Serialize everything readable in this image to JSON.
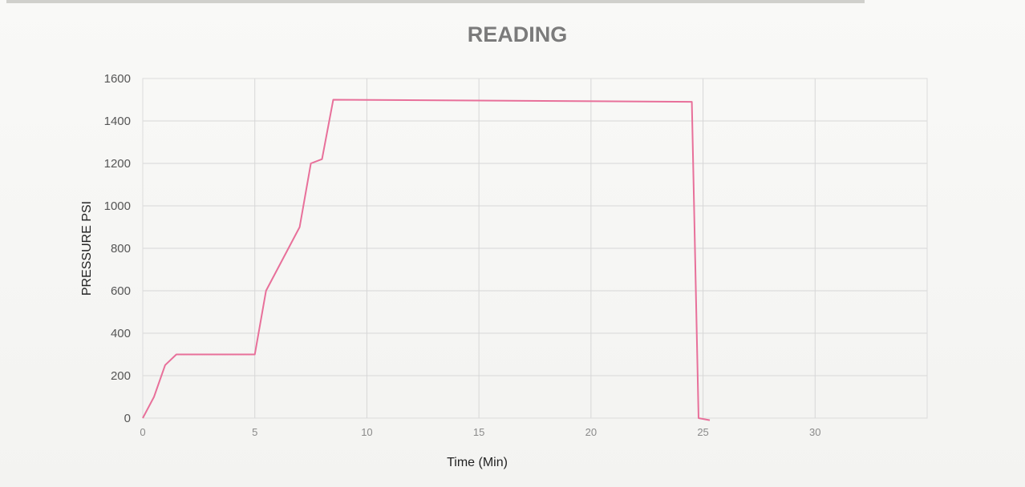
{
  "chart_data": {
    "type": "line",
    "title": "READING",
    "xlabel": "Time (Min)",
    "ylabel": "PRESSURE PSI",
    "xlim": [
      0,
      35
    ],
    "ylim": [
      0,
      1600
    ],
    "x_ticks": [
      "0",
      "5",
      "10",
      "15",
      "20",
      "25",
      "30"
    ],
    "y_ticks": [
      "0",
      "200",
      "400",
      "600",
      "800",
      "1000",
      "1200",
      "1400",
      "1600"
    ],
    "grid": true,
    "legend": "none",
    "series": [
      {
        "color": "#e8709a",
        "x": [
          0,
          0.5,
          1,
          1.5,
          5,
          5.5,
          7,
          7.5,
          8,
          8.5,
          24.5,
          24.8,
          25.3
        ],
        "y": [
          0,
          100,
          250,
          300,
          300,
          600,
          900,
          1200,
          1220,
          1500,
          1490,
          0,
          -10
        ]
      }
    ]
  }
}
